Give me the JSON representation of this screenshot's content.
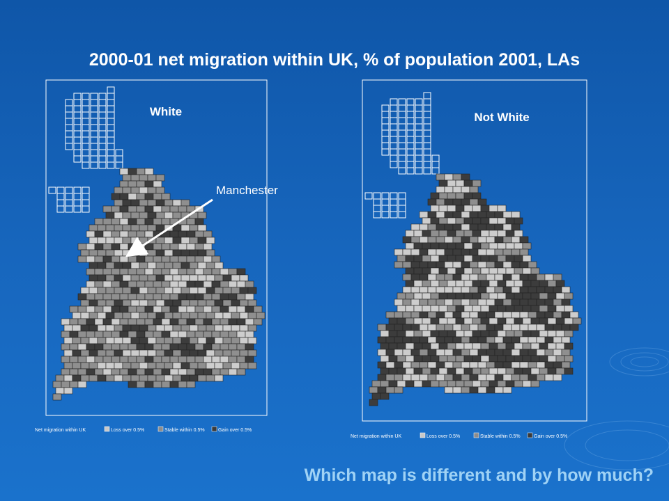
{
  "title": "2000-01 net migration within UK, % of population 2001, LAs",
  "maps": [
    {
      "label": "White",
      "annotation": "Manchester",
      "legend": {
        "title": "Net migration within UK",
        "items": [
          {
            "text": "Loss over 0.5%",
            "color": "#c8c8c8"
          },
          {
            "text": "Stable within 0.5%",
            "color": "#8c8c8c"
          },
          {
            "text": "Gain over 0.5%",
            "color": "#3a3a3a"
          }
        ]
      }
    },
    {
      "label": "Not White",
      "legend": {
        "title": "Net migration within UK",
        "items": [
          {
            "text": "Loss over 0.5%",
            "color": "#c8c8c8"
          },
          {
            "text": "Stable within 0.5%",
            "color": "#8c8c8c"
          },
          {
            "text": "Gain over 0.5%",
            "color": "#3a3a3a"
          }
        ]
      }
    }
  ],
  "question": "Which map is different and by how much?"
}
